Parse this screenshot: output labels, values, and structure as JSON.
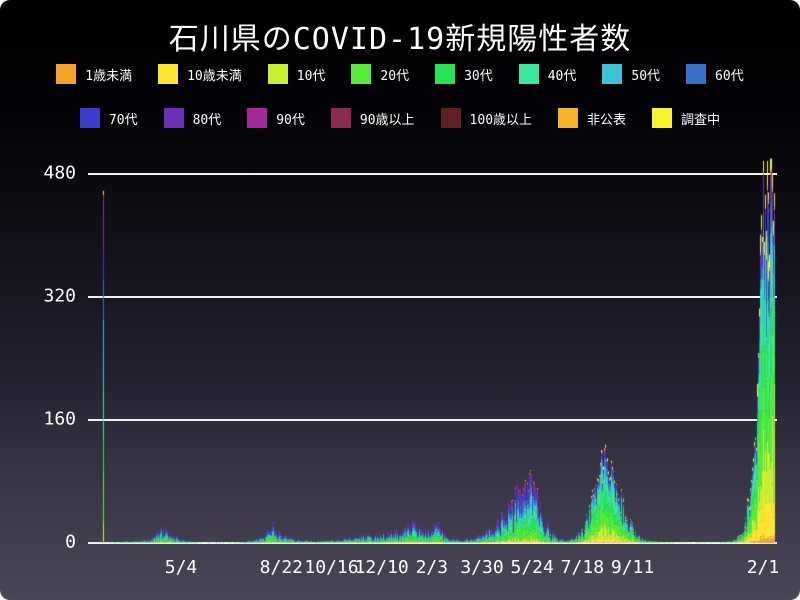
{
  "title": "石川県のCOVID-19新規陽性者数",
  "chart_data": {
    "type": "bar",
    "stacked": true,
    "title": "石川県のCOVID-19新規陽性者数",
    "xlabel": "",
    "ylabel": "",
    "ylim": [
      0,
      505
    ],
    "grid": "horizontal",
    "legend_position": "top",
    "y_ticks": [
      0,
      160,
      320,
      480
    ],
    "x_ticks": [
      {
        "label": "5/4",
        "date": "2020-05-04"
      },
      {
        "label": "8/22",
        "date": "2020-08-22"
      },
      {
        "label": "10/16",
        "date": "2020-10-16"
      },
      {
        "label": "12/10",
        "date": "2020-12-10"
      },
      {
        "label": "2/3",
        "date": "2021-02-03"
      },
      {
        "label": "3/30",
        "date": "2021-03-30"
      },
      {
        "label": "5/24",
        "date": "2021-05-24"
      },
      {
        "label": "7/18",
        "date": "2021-07-18"
      },
      {
        "label": "9/11",
        "date": "2021-09-11"
      },
      {
        "label": "2/1",
        "date": "2022-02-01"
      }
    ],
    "date_range": [
      "2020-02-08",
      "2022-02-13"
    ],
    "groups": [
      {
        "label": "1歳未満",
        "color": "#f3a32b"
      },
      {
        "label": "10歳未満",
        "color": "#ffe431"
      },
      {
        "label": "10代",
        "color": "#c6ef33"
      },
      {
        "label": "20代",
        "color": "#59e93b"
      },
      {
        "label": "30代",
        "color": "#27e356"
      },
      {
        "label": "40代",
        "color": "#3be59e"
      },
      {
        "label": "50代",
        "color": "#3cc3d9"
      },
      {
        "label": "60代",
        "color": "#3a72c9"
      },
      {
        "label": "70代",
        "color": "#3e3ccb"
      },
      {
        "label": "80代",
        "color": "#6c30b8"
      },
      {
        "label": "90代",
        "color": "#a3289a"
      },
      {
        "label": "90歳以上",
        "color": "#8c2a50"
      },
      {
        "label": "100歳以上",
        "color": "#5c2121"
      },
      {
        "label": "非公表",
        "color": "#f5b32c"
      },
      {
        "label": "調査中",
        "color": "#f7f22e"
      }
    ],
    "legend_row_split": [
      8,
      7
    ],
    "age_share_eras": [
      {
        "until": "2021-06-30",
        "weights": [
          0.004,
          0.02,
          0.05,
          0.15,
          0.13,
          0.13,
          0.14,
          0.12,
          0.1,
          0.08,
          0.04,
          0.012,
          0.003,
          0.004,
          0.007
        ]
      },
      {
        "until": "2021-11-30",
        "weights": [
          0.01,
          0.05,
          0.1,
          0.24,
          0.17,
          0.15,
          0.11,
          0.07,
          0.04,
          0.02,
          0.01,
          0.004,
          0.001,
          0.005,
          0.02
        ]
      },
      {
        "until": "2022-02-13",
        "weights": [
          0.015,
          0.1,
          0.13,
          0.19,
          0.16,
          0.14,
          0.09,
          0.06,
          0.04,
          0.03,
          0.015,
          0.005,
          0.002,
          0.008,
          0.04
        ]
      }
    ],
    "daily_total_waypoints": [
      [
        "2020-02-08",
        0.3
      ],
      [
        "2020-02-21",
        0.8
      ],
      [
        "2020-03-05",
        1.5
      ],
      [
        "2020-03-20",
        2
      ],
      [
        "2020-03-31",
        6
      ],
      [
        "2020-04-08",
        12
      ],
      [
        "2020-04-14",
        19
      ],
      [
        "2020-04-20",
        13
      ],
      [
        "2020-04-27",
        8
      ],
      [
        "2020-05-04",
        4
      ],
      [
        "2020-05-12",
        1.5
      ],
      [
        "2020-05-25",
        0.5
      ],
      [
        "2020-06-10",
        0.3
      ],
      [
        "2020-06-25",
        0.4
      ],
      [
        "2020-07-10",
        1
      ],
      [
        "2020-07-22",
        3
      ],
      [
        "2020-08-01",
        9
      ],
      [
        "2020-08-07",
        18
      ],
      [
        "2020-08-12",
        23
      ],
      [
        "2020-08-18",
        13
      ],
      [
        "2020-08-25",
        8
      ],
      [
        "2020-09-03",
        5
      ],
      [
        "2020-09-14",
        3
      ],
      [
        "2020-09-25",
        2
      ],
      [
        "2020-10-08",
        2
      ],
      [
        "2020-10-20",
        3.5
      ],
      [
        "2020-11-01",
        5
      ],
      [
        "2020-11-12",
        8
      ],
      [
        "2020-11-22",
        10
      ],
      [
        "2020-12-03",
        8
      ],
      [
        "2020-12-12",
        11
      ],
      [
        "2020-12-22",
        14
      ],
      [
        "2021-01-04",
        16
      ],
      [
        "2021-01-13",
        24
      ],
      [
        "2021-01-20",
        19
      ],
      [
        "2021-01-28",
        13
      ],
      [
        "2021-02-04",
        17
      ],
      [
        "2021-02-09",
        23
      ],
      [
        "2021-02-16",
        11
      ],
      [
        "2021-02-24",
        6
      ],
      [
        "2021-03-05",
        4
      ],
      [
        "2021-03-16",
        5
      ],
      [
        "2021-03-25",
        8
      ],
      [
        "2021-04-02",
        13
      ],
      [
        "2021-04-10",
        18
      ],
      [
        "2021-04-18",
        28
      ],
      [
        "2021-04-26",
        40
      ],
      [
        "2021-05-04",
        55
      ],
      [
        "2021-05-12",
        68
      ],
      [
        "2021-05-18",
        80
      ],
      [
        "2021-05-23",
        85
      ],
      [
        "2021-05-29",
        58
      ],
      [
        "2021-06-05",
        32
      ],
      [
        "2021-06-12",
        16
      ],
      [
        "2021-06-20",
        7
      ],
      [
        "2021-06-28",
        3
      ],
      [
        "2021-07-08",
        6
      ],
      [
        "2021-07-15",
        12
      ],
      [
        "2021-07-22",
        28
      ],
      [
        "2021-07-29",
        55
      ],
      [
        "2021-08-04",
        90
      ],
      [
        "2021-08-08",
        115
      ],
      [
        "2021-08-12",
        112
      ],
      [
        "2021-08-18",
        95
      ],
      [
        "2021-08-25",
        70
      ],
      [
        "2021-09-01",
        45
      ],
      [
        "2021-09-08",
        25
      ],
      [
        "2021-09-15",
        10
      ],
      [
        "2021-09-22",
        4
      ],
      [
        "2021-10-01",
        2
      ],
      [
        "2021-10-12",
        1
      ],
      [
        "2021-10-25",
        0.4
      ],
      [
        "2021-11-10",
        0.2
      ],
      [
        "2021-11-25",
        0.3
      ],
      [
        "2021-12-08",
        0.5
      ],
      [
        "2021-12-20",
        0.8
      ],
      [
        "2021-12-28",
        2
      ],
      [
        "2022-01-03",
        5
      ],
      [
        "2022-01-07",
        10
      ],
      [
        "2022-01-11",
        22
      ],
      [
        "2022-01-14",
        38
      ],
      [
        "2022-01-17",
        62
      ],
      [
        "2022-01-20",
        100
      ],
      [
        "2022-01-23",
        155
      ],
      [
        "2022-01-26",
        235
      ],
      [
        "2022-01-28",
        320
      ],
      [
        "2022-01-30",
        415
      ],
      [
        "2022-02-01",
        490
      ],
      [
        "2022-02-03",
        430
      ],
      [
        "2022-02-05",
        462
      ],
      [
        "2022-02-07",
        425
      ],
      [
        "2022-02-10",
        468
      ],
      [
        "2022-02-13",
        445
      ]
    ],
    "peak_annotation": {
      "date": "2022-02-01",
      "value": 497
    }
  }
}
